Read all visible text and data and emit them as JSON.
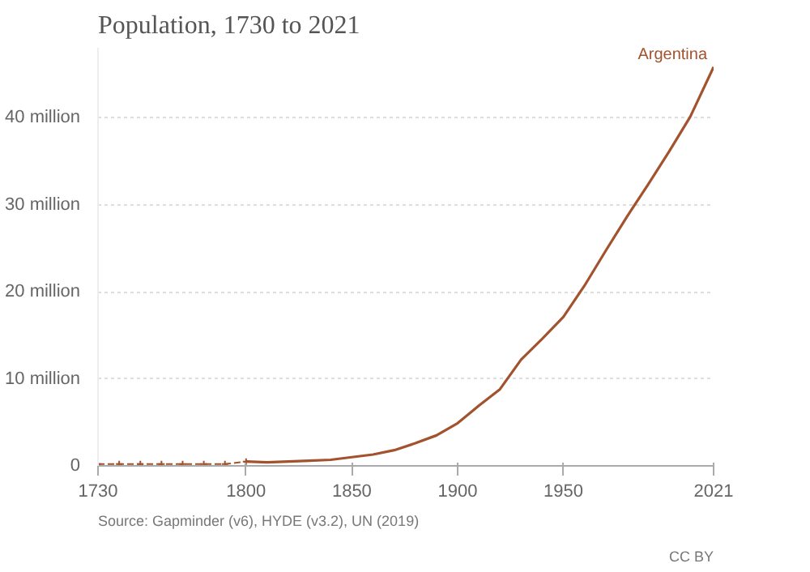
{
  "chart_data": {
    "type": "line",
    "title": "Population, 1730 to 2021",
    "annotations": [
      "Source: Gapminder (v6), HYDE (v3.2), UN (2019)",
      "CC BY"
    ],
    "series": [
      {
        "name": "Argentina",
        "color": "#a2522c",
        "line_style": "solid",
        "x": [
          1800,
          1810,
          1820,
          1830,
          1840,
          1850,
          1860,
          1870,
          1880,
          1890,
          1900,
          1910,
          1920,
          1930,
          1940,
          1950,
          1960,
          1970,
          1980,
          1990,
          2000,
          2010,
          2021
        ],
        "values": [
          0.5,
          0.4,
          0.5,
          0.6,
          0.7,
          1.0,
          1.3,
          1.8,
          2.6,
          3.5,
          4.9,
          6.9,
          8.8,
          12.2,
          14.6,
          17.1,
          20.7,
          24.7,
          28.6,
          32.3,
          36.1,
          40.1,
          45.8
        ]
      },
      {
        "color": "#a2522c",
        "line_style": "dashed",
        "marker": "cross",
        "x": [
          1730,
          1740,
          1750,
          1760,
          1770,
          1780,
          1790,
          1800
        ],
        "values": [
          0.2,
          0.2,
          0.2,
          0.2,
          0.2,
          0.2,
          0.2,
          0.5
        ]
      }
    ],
    "xlim": [
      1730,
      2021
    ],
    "xticks": [
      1730,
      1800,
      1850,
      1900,
      1950,
      2021
    ],
    "ylim": [
      0,
      48
    ],
    "yticks": [
      {
        "value": 0,
        "label": "0"
      },
      {
        "value": 10,
        "label": "10 million"
      },
      {
        "value": 20,
        "label": "20 million"
      },
      {
        "value": 30,
        "label": "30 million"
      },
      {
        "value": 40,
        "label": "40 million"
      }
    ],
    "grid": "y"
  }
}
